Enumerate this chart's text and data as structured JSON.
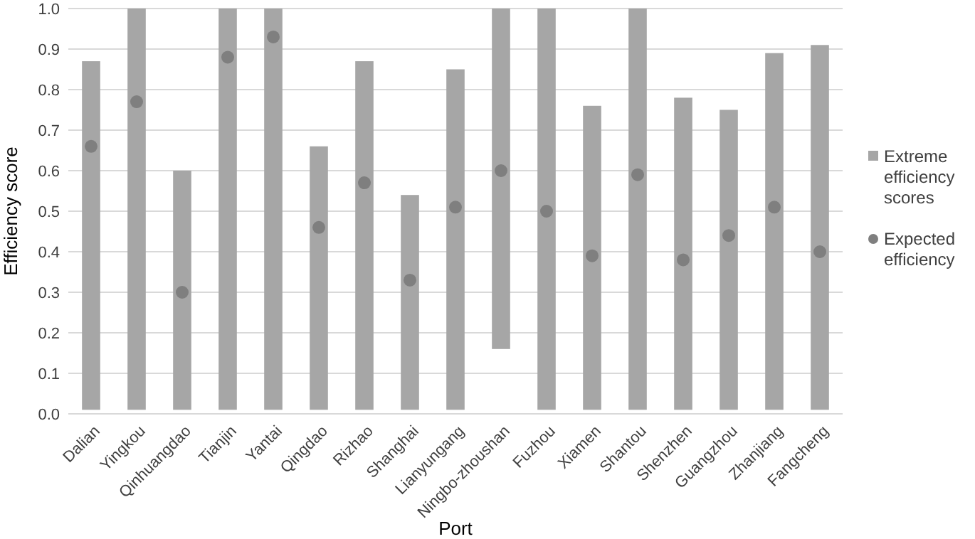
{
  "chart_data": {
    "type": "bar",
    "xlabel": "Port",
    "ylabel": "Efficiency score",
    "categories": [
      "Dalian",
      "Yingkou",
      "Qinhuangdao",
      "Tianjin",
      "Yantai",
      "Qingdao",
      "Rizhao",
      "Shanghai",
      "Lianyungang",
      "Ningbo-zhoushan",
      "Fuzhou",
      "Xiamen",
      "Shantou",
      "Shenzhen",
      "Guangzhou",
      "Zhanjiang",
      "Fangcheng"
    ],
    "series": [
      {
        "name": "Extreme efficiency scores",
        "color": "#a6a6a6",
        "base": [
          0.01,
          0.01,
          0.01,
          0.01,
          0.01,
          0.01,
          0.01,
          0.01,
          0.01,
          0.16,
          0.01,
          0.01,
          0.01,
          0.01,
          0.01,
          0.01,
          0.01
        ],
        "values": [
          0.86,
          0.99,
          0.59,
          0.99,
          0.99,
          0.65,
          0.86,
          0.53,
          0.84,
          0.84,
          0.99,
          0.75,
          0.99,
          0.77,
          0.74,
          0.88,
          0.9
        ]
      },
      {
        "name": "Expected efficiency",
        "type": "scatter",
        "color": "#7f7f7f",
        "x": [
          "Dalian",
          "Yingkou",
          "Qinhuangdao",
          "Tianjin",
          "Yantai",
          "Qingdao",
          "Rizhao",
          "Shanghai",
          "Lianyungang",
          "Ningbo-zhoushan",
          "Fuzhou",
          "Xiamen",
          "Shantou",
          "Shenzhen",
          "Guangzhou",
          "Zhanjiang",
          "Fangcheng"
        ],
        "values": [
          0.66,
          0.77,
          0.3,
          0.88,
          0.93,
          0.46,
          0.57,
          0.33,
          0.51,
          0.6,
          0.5,
          0.39,
          0.59,
          0.38,
          0.44,
          0.51,
          0.4
        ]
      }
    ],
    "ylim": [
      0,
      1
    ],
    "yticks": [
      {
        "value": 0,
        "label": "0.0"
      },
      {
        "value": 0.1,
        "label": "0.1"
      },
      {
        "value": 0.2,
        "label": "0.2"
      },
      {
        "value": 0.3,
        "label": "0.3"
      },
      {
        "value": 0.4,
        "label": "0.4"
      },
      {
        "value": 0.5,
        "label": "0.5"
      },
      {
        "value": 0.6,
        "label": "0.6"
      },
      {
        "value": 0.7,
        "label": "0.7"
      },
      {
        "value": 0.8,
        "label": "0.8"
      },
      {
        "value": 0.9,
        "label": "0.9"
      },
      {
        "value": 1,
        "label": "1.0"
      }
    ],
    "grid": "y",
    "legend": "right",
    "marker": "circle"
  }
}
